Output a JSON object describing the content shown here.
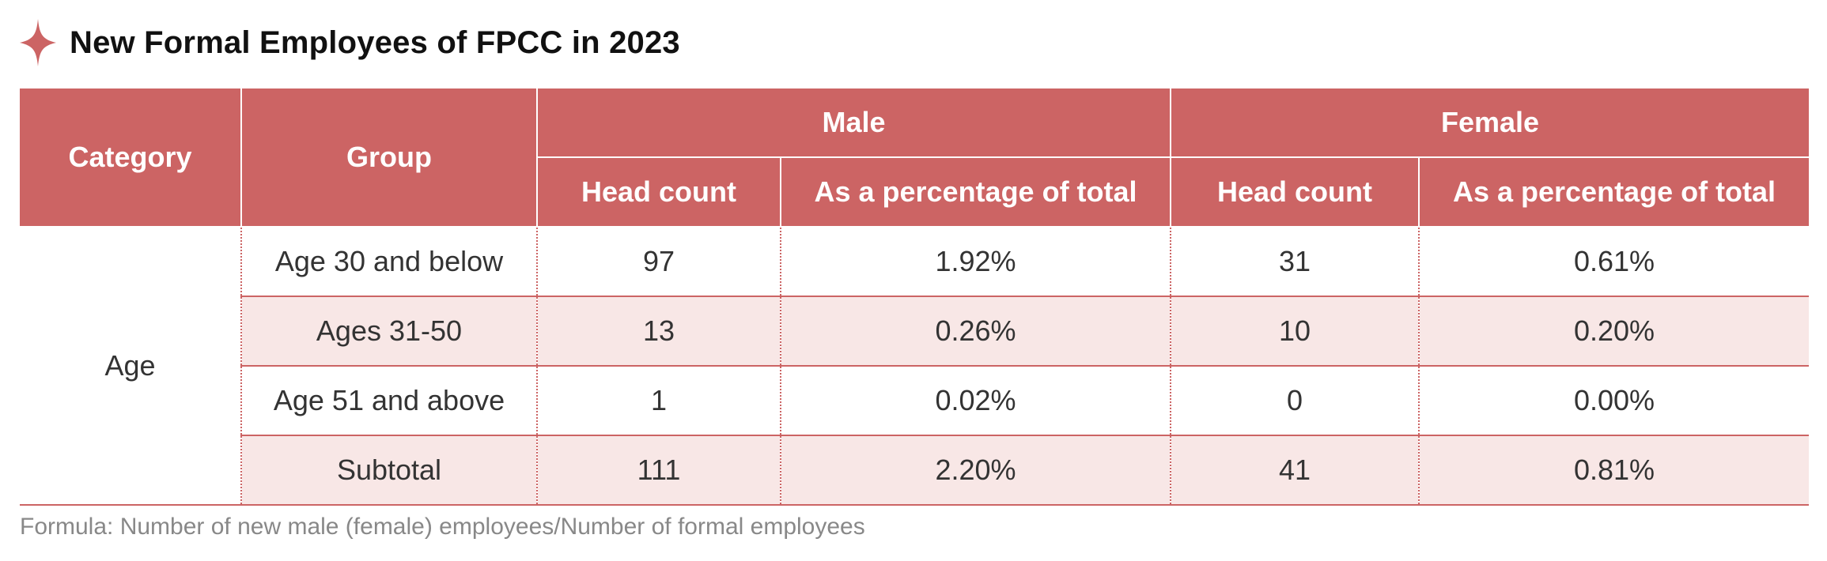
{
  "title": "New Formal Employees of FPCC in 2023",
  "colors": {
    "accent": "#cc6464",
    "row_shade": "#f8e7e6"
  },
  "icons": {
    "title_marker": "four-point-star-icon"
  },
  "table": {
    "headers": {
      "category": "Category",
      "group": "Group",
      "male": "Male",
      "female": "Female",
      "head_count": "Head count",
      "percentage": "As a percentage of total"
    },
    "category": "Age",
    "rows": [
      {
        "group": "Age 30 and below",
        "male_count": "97",
        "male_pct": "1.92%",
        "female_count": "31",
        "female_pct": "0.61%"
      },
      {
        "group": "Ages 31-50",
        "male_count": "13",
        "male_pct": "0.26%",
        "female_count": "10",
        "female_pct": "0.20%"
      },
      {
        "group": "Age 51 and above",
        "male_count": "1",
        "male_pct": "0.02%",
        "female_count": "0",
        "female_pct": "0.00%"
      },
      {
        "group": "Subtotal",
        "male_count": "111",
        "male_pct": "2.20%",
        "female_count": "41",
        "female_pct": "0.81%"
      }
    ]
  },
  "formula": "Formula: Number of new male (female) employees/Number of formal employees"
}
